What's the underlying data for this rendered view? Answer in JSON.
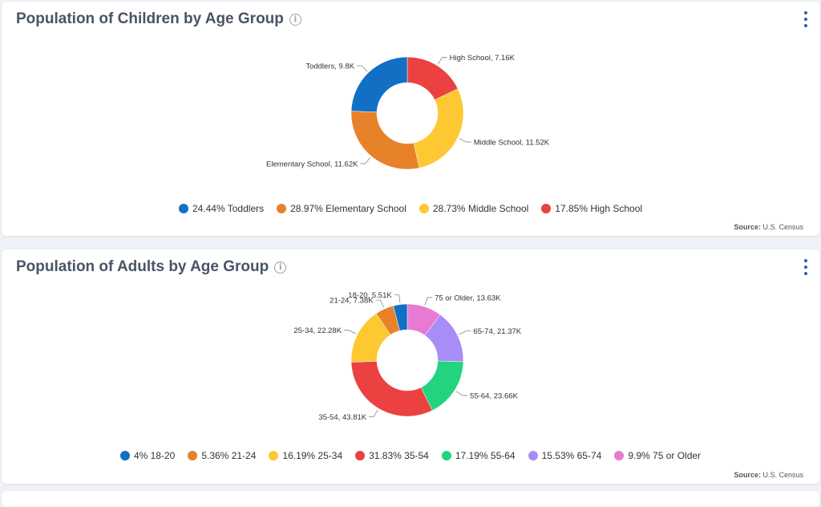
{
  "cards": [
    {
      "title": "Population of Children by Age Group",
      "source_label": "Source:",
      "source_value": "U.S. Census"
    },
    {
      "title": "Population of Adults by Age Group",
      "source_label": "Source:",
      "source_value": "U.S. Census"
    }
  ],
  "chart_data": [
    {
      "type": "pie",
      "donut": true,
      "title": "Population of Children by Age Group",
      "categories": [
        "Toddlers",
        "Elementary School",
        "Middle School",
        "High School"
      ],
      "values": [
        9.8,
        11.62,
        11.52,
        7.16
      ],
      "unit": "K",
      "slice_labels": [
        "Toddlers, 9.8K",
        "Elementary School, 11.62K",
        "Middle School, 11.52K",
        "High School, 7.16K"
      ],
      "legend": [
        "24.44% Toddlers",
        "28.97% Elementary School",
        "28.73% Middle School",
        "17.85% High School"
      ],
      "colors": [
        "#1170c4",
        "#e8822a",
        "#fdc832",
        "#eb4141"
      ],
      "legend_position": "bottom"
    },
    {
      "type": "pie",
      "donut": true,
      "title": "Population of Adults by Age Group",
      "categories": [
        "18-20",
        "21-24",
        "25-34",
        "35-54",
        "55-64",
        "65-74",
        "75 or Older"
      ],
      "values": [
        5.51,
        7.38,
        22.28,
        43.81,
        23.66,
        21.37,
        13.63
      ],
      "unit": "K",
      "slice_labels": [
        "18-20, 5.51K",
        "21-24, 7.38K",
        "25-34, 22.28K",
        "35-54, 43.81K",
        "55-64, 23.66K",
        "65-74, 21.37K",
        "75 or Older, 13.63K"
      ],
      "legend": [
        "4% 18-20",
        "5.36% 21-24",
        "16.19% 25-34",
        "31.83% 35-54",
        "17.19% 55-64",
        "15.53% 65-74",
        "9.9% 75 or Older"
      ],
      "colors": [
        "#1170c4",
        "#e8822a",
        "#fdc832",
        "#eb4141",
        "#22d47f",
        "#a98df7",
        "#e87ad3"
      ],
      "legend_position": "bottom"
    }
  ]
}
